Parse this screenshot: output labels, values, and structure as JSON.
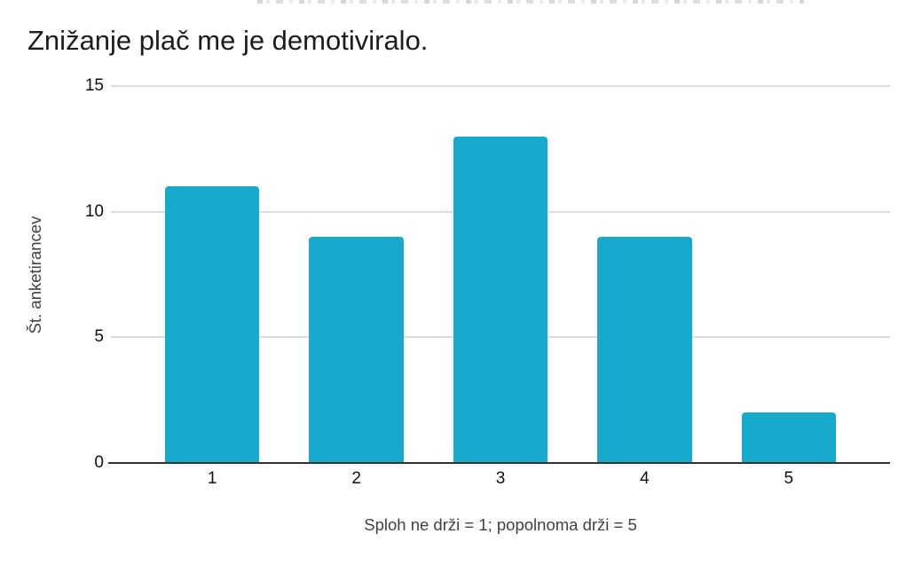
{
  "chart_data": {
    "type": "bar",
    "title": "Znižanje plač me je demotiviralo.",
    "categories": [
      "1",
      "2",
      "3",
      "4",
      "5"
    ],
    "values": [
      11,
      9,
      13,
      9,
      2
    ],
    "xlabel": "Sploh ne drži = 1; popolnoma drži = 5",
    "ylabel": "Št. anketirancev",
    "ylim": [
      0,
      15
    ],
    "yticks": [
      0,
      5,
      10,
      15
    ],
    "grid": true,
    "legend_position": "none",
    "colors": {
      "bar": "#18aacd",
      "gridline": "#dcdcdc",
      "axis_line": "#333333",
      "title_text": "#1c1c1c",
      "tick_text": "#111111",
      "axis_title_text": "#424242",
      "background": "#ffffff"
    }
  }
}
